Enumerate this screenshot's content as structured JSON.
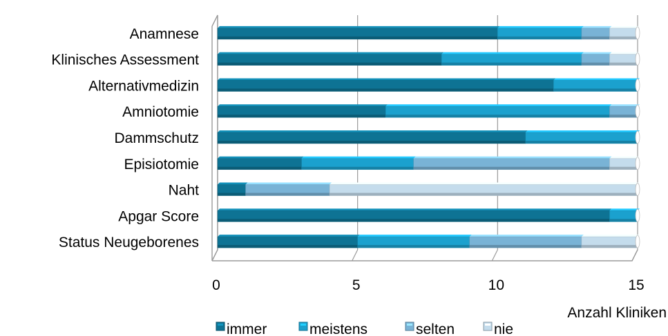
{
  "chart_data": {
    "type": "bar",
    "orientation": "horizontal",
    "stacked": true,
    "categories": [
      "Anamnese",
      "Klinisches Assessment",
      "Alternativmedizin",
      "Amniotomie",
      "Dammschutz",
      "Episiotomie",
      "Naht",
      "Apgar Score",
      "Status Neugeborenes"
    ],
    "series": [
      {
        "name": "immer",
        "color": "#0e7394",
        "values": [
          10,
          8,
          12,
          6,
          11,
          3,
          1,
          14,
          5
        ]
      },
      {
        "name": "meistens",
        "color": "#1ba1ce",
        "values": [
          3,
          5,
          3,
          8,
          4,
          4,
          0,
          1,
          4
        ]
      },
      {
        "name": "selten",
        "color": "#79b3d6",
        "values": [
          1,
          1,
          0,
          1,
          0,
          7,
          3,
          0,
          4
        ]
      },
      {
        "name": "nie",
        "color": "#c4dcec",
        "values": [
          1,
          1,
          0,
          0,
          0,
          1,
          11,
          0,
          2
        ]
      }
    ],
    "xlim": [
      0,
      15
    ],
    "xticks": [
      "0",
      "5",
      "10",
      "15"
    ],
    "xlabel": "Anzahl Kliniken",
    "ylabel": "",
    "title": "",
    "grid": true,
    "legend_position": "bottom"
  }
}
